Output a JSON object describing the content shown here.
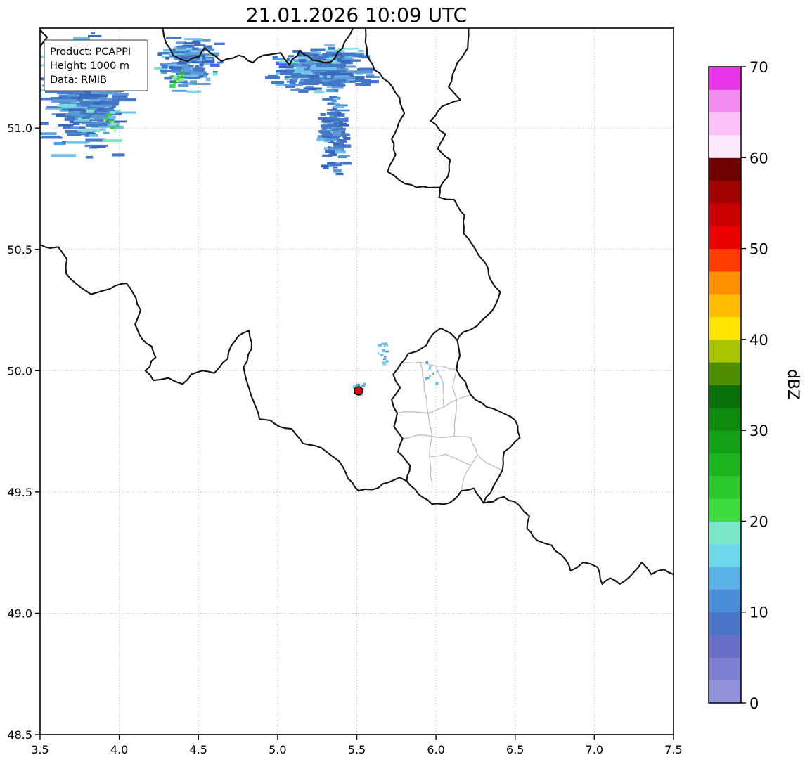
{
  "info_box": {
    "product": "Product: PCAPPI",
    "height": "Height: 1000 m",
    "data_source": "Data: RMIB"
  },
  "chart_data": {
    "type": "heatmap",
    "title": "21.01.2026 10:09 UTC",
    "xlabel": "",
    "ylabel": "",
    "units": "dBZ",
    "grid": true,
    "xlim": [
      3.5,
      7.5
    ],
    "ylim": [
      48.5,
      51.412
    ],
    "x_ticks": [
      3.5,
      4.0,
      4.5,
      5.0,
      5.5,
      6.0,
      6.5,
      7.0,
      7.5
    ],
    "y_ticks": [
      48.5,
      49.0,
      49.5,
      50.0,
      50.5,
      51.0
    ],
    "colorbar": {
      "label": "dBZ",
      "min": 0,
      "max": 70,
      "step": 2.5,
      "ticks": [
        0,
        10,
        20,
        30,
        40,
        50,
        60,
        70
      ],
      "colors": [
        "#9191dc",
        "#7f7fd2",
        "#6a6ec8",
        "#4a74c8",
        "#4a8ed8",
        "#5ab2e6",
        "#6ed8ea",
        "#7ce6c8",
        "#3fdc3f",
        "#2cc82c",
        "#1eb41e",
        "#14a014",
        "#0e8a0e",
        "#0a700a",
        "#4e8c00",
        "#a8c400",
        "#ffe400",
        "#ffbc00",
        "#ff9000",
        "#ff3c00",
        "#ea0000",
        "#c80000",
        "#a00000",
        "#700000",
        "#fce9fc",
        "#f9c2f9",
        "#f48cf4",
        "#e835e8"
      ]
    },
    "radar_marker": {
      "lon": 5.51,
      "lat": 49.917,
      "color": "#e01010"
    },
    "echo_clusters": [
      {
        "seed": 11,
        "count": 300,
        "center": [
          3.8,
          51.14
        ],
        "rx": 0.34,
        "ry": 0.3,
        "streak": [
          5,
          38
        ],
        "palette": [
          [
            "#4577c6",
            40
          ],
          [
            "#5c9ad6",
            22
          ],
          [
            "#3a66bd",
            14
          ],
          [
            "#6fc0e8",
            14
          ],
          [
            "#7adce0",
            7
          ],
          [
            "#7fe3c4",
            3
          ]
        ]
      },
      {
        "seed": 23,
        "count": 10,
        "center": [
          3.95,
          51.02
        ],
        "rx": 0.1,
        "ry": 0.06,
        "streak": [
          3,
          9
        ],
        "palette": [
          [
            "#37d04a",
            40
          ],
          [
            "#8ee89a",
            30
          ],
          [
            "#7adce0",
            30
          ]
        ]
      },
      {
        "seed": 31,
        "count": 150,
        "center": [
          4.44,
          51.27
        ],
        "rx": 0.24,
        "ry": 0.15,
        "streak": [
          5,
          26
        ],
        "palette": [
          [
            "#4577c6",
            40
          ],
          [
            "#5c9ad6",
            25
          ],
          [
            "#3a66bd",
            15
          ],
          [
            "#6fc0e8",
            15
          ],
          [
            "#7adce0",
            5
          ]
        ]
      },
      {
        "seed": 7,
        "count": 20,
        "center": [
          4.365,
          51.205
        ],
        "rx": 0.05,
        "ry": 0.04,
        "streak": [
          3,
          9
        ],
        "palette": [
          [
            "#37d04a",
            45
          ],
          [
            "#26b838",
            25
          ],
          [
            "#8ee89a",
            20
          ],
          [
            "#7adce0",
            10
          ]
        ]
      },
      {
        "seed": 43,
        "count": 280,
        "center": [
          5.28,
          51.24
        ],
        "rx": 0.4,
        "ry": 0.12,
        "streak": [
          5,
          30
        ],
        "palette": [
          [
            "#4577c6",
            42
          ],
          [
            "#5c9ad6",
            22
          ],
          [
            "#3a66bd",
            16
          ],
          [
            "#6fc0e8",
            14
          ],
          [
            "#7adce0",
            6
          ]
        ]
      },
      {
        "seed": 57,
        "count": 150,
        "center": [
          5.36,
          50.99
        ],
        "rx": 0.11,
        "ry": 0.22,
        "streak": [
          4,
          18
        ],
        "palette": [
          [
            "#3a66bd",
            35
          ],
          [
            "#4577c6",
            35
          ],
          [
            "#5c9ad6",
            20
          ],
          [
            "#6fc0e8",
            10
          ]
        ]
      },
      {
        "seed": 61,
        "count": 14,
        "center": [
          5.67,
          50.08
        ],
        "rx": 0.05,
        "ry": 0.12,
        "streak": [
          2,
          6
        ],
        "palette": [
          [
            "#6fc0e8",
            50
          ],
          [
            "#5c9ad6",
            30
          ],
          [
            "#7adce0",
            20
          ]
        ]
      },
      {
        "seed": 71,
        "count": 12,
        "center": [
          5.52,
          49.93
        ],
        "rx": 0.07,
        "ry": 0.05,
        "streak": [
          2,
          6
        ],
        "palette": [
          [
            "#6fc0e8",
            60
          ],
          [
            "#5c9ad6",
            40
          ]
        ]
      },
      {
        "seed": 83,
        "count": 10,
        "center": [
          5.96,
          49.97
        ],
        "rx": 0.09,
        "ry": 0.08,
        "streak": [
          2,
          5
        ],
        "palette": [
          [
            "#6fc0e8",
            60
          ],
          [
            "#5c9ad6",
            40
          ]
        ]
      }
    ],
    "borders": {
      "country": [
        [
          [
            3.5,
            51.405
          ],
          [
            3.545,
            51.375
          ],
          [
            3.515,
            51.35
          ],
          [
            3.5,
            51.335
          ]
        ],
        [
          [
            4.275,
            51.412
          ],
          [
            4.295,
            51.35
          ],
          [
            4.34,
            51.3
          ],
          [
            4.43,
            51.275
          ],
          [
            4.505,
            51.295
          ],
          [
            4.54,
            51.33
          ],
          [
            4.645,
            51.275
          ],
          [
            4.755,
            51.3
          ],
          [
            4.845,
            51.27
          ],
          [
            4.91,
            51.3
          ],
          [
            5.02,
            51.31
          ],
          [
            5.075,
            51.26
          ],
          [
            5.14,
            51.32
          ],
          [
            5.22,
            51.28
          ],
          [
            5.33,
            51.27
          ],
          [
            5.41,
            51.33
          ],
          [
            5.475,
            51.412
          ]
        ],
        [
          [
            5.555,
            51.412
          ],
          [
            5.565,
            51.3
          ],
          [
            5.61,
            51.24
          ],
          [
            5.7,
            51.19
          ],
          [
            5.77,
            51.125
          ],
          [
            5.8,
            51.06
          ],
          [
            5.755,
            51.0
          ],
          [
            5.72,
            50.955
          ],
          [
            5.745,
            50.89
          ],
          [
            5.695,
            50.82
          ],
          [
            5.77,
            50.785
          ],
          [
            5.88,
            50.755
          ],
          [
            5.99,
            50.755
          ],
          [
            6.025,
            50.755
          ]
        ],
        [
          [
            6.205,
            51.412
          ],
          [
            6.2,
            51.33
          ],
          [
            6.135,
            51.27
          ],
          [
            6.08,
            51.17
          ],
          [
            6.155,
            51.115
          ],
          [
            6.04,
            51.09
          ],
          [
            5.965,
            51.03
          ],
          [
            6.06,
            50.975
          ],
          [
            6.01,
            50.915
          ],
          [
            6.09,
            50.87
          ],
          [
            6.075,
            50.8
          ],
          [
            6.025,
            50.755
          ]
        ],
        [
          [
            6.025,
            50.755
          ],
          [
            6.02,
            50.715
          ],
          [
            6.115,
            50.705
          ],
          [
            6.18,
            50.64
          ],
          [
            6.175,
            50.565
          ],
          [
            6.25,
            50.5
          ],
          [
            6.315,
            50.44
          ],
          [
            6.345,
            50.375
          ],
          [
            6.405,
            50.325
          ],
          [
            6.375,
            50.27
          ],
          [
            6.32,
            50.225
          ],
          [
            6.26,
            50.185
          ],
          [
            6.175,
            50.16
          ],
          [
            6.135,
            50.125
          ]
        ],
        [
          [
            6.135,
            50.125
          ],
          [
            6.15,
            50.06
          ],
          [
            6.13,
            50.005
          ],
          [
            6.185,
            49.955
          ],
          [
            6.22,
            49.9
          ],
          [
            6.32,
            49.85
          ],
          [
            6.44,
            49.82
          ],
          [
            6.5,
            49.795
          ],
          [
            6.53,
            49.725
          ],
          [
            6.43,
            49.665
          ],
          [
            6.42,
            49.59
          ],
          [
            6.36,
            49.52
          ],
          [
            6.3,
            49.455
          ],
          [
            6.24,
            49.515
          ],
          [
            6.16,
            49.505
          ],
          [
            6.085,
            49.455
          ],
          [
            5.975,
            49.45
          ],
          [
            5.89,
            49.49
          ],
          [
            5.815,
            49.545
          ],
          [
            5.835,
            49.61
          ],
          [
            5.76,
            49.665
          ],
          [
            5.79,
            49.72
          ],
          [
            5.735,
            49.77
          ],
          [
            5.755,
            49.825
          ],
          [
            5.72,
            49.88
          ],
          [
            5.775,
            49.93
          ],
          [
            5.73,
            49.985
          ],
          [
            5.78,
            50.03
          ],
          [
            5.825,
            50.07
          ],
          [
            5.88,
            50.08
          ],
          [
            5.94,
            50.105
          ],
          [
            5.98,
            50.15
          ],
          [
            6.03,
            50.175
          ],
          [
            6.09,
            50.155
          ],
          [
            6.135,
            50.125
          ]
        ],
        [
          [
            3.5,
            50.52
          ],
          [
            3.56,
            50.505
          ],
          [
            3.615,
            50.51
          ],
          [
            3.67,
            50.46
          ],
          [
            3.665,
            50.4
          ],
          [
            3.735,
            50.355
          ],
          [
            3.82,
            50.315
          ],
          [
            3.9,
            50.33
          ],
          [
            3.975,
            50.35
          ],
          [
            4.045,
            50.36
          ],
          [
            4.105,
            50.3
          ],
          [
            4.135,
            50.25
          ],
          [
            4.1,
            50.19
          ],
          [
            4.145,
            50.13
          ],
          [
            4.205,
            50.1
          ],
          [
            4.23,
            50.055
          ],
          [
            4.165,
            50.0
          ],
          [
            4.215,
            49.96
          ],
          [
            4.31,
            49.97
          ],
          [
            4.4,
            49.945
          ],
          [
            4.455,
            49.985
          ],
          [
            4.525,
            50.0
          ],
          [
            4.6,
            49.99
          ],
          [
            4.685,
            50.05
          ],
          [
            4.705,
            50.1
          ],
          [
            4.755,
            50.145
          ],
          [
            4.82,
            50.165
          ],
          [
            4.835,
            50.09
          ],
          [
            4.785,
            50.015
          ],
          [
            4.805,
            49.955
          ],
          [
            4.85,
            49.87
          ],
          [
            4.885,
            49.8
          ],
          [
            4.955,
            49.795
          ],
          [
            5.01,
            49.77
          ],
          [
            5.09,
            49.76
          ],
          [
            5.16,
            49.7
          ],
          [
            5.24,
            49.69
          ],
          [
            5.31,
            49.665
          ],
          [
            5.39,
            49.625
          ],
          [
            5.445,
            49.555
          ],
          [
            5.51,
            49.505
          ],
          [
            5.6,
            49.51
          ],
          [
            5.7,
            49.54
          ],
          [
            5.77,
            49.56
          ],
          [
            5.815,
            49.545
          ]
        ],
        [
          [
            6.3,
            49.455
          ],
          [
            6.36,
            49.46
          ],
          [
            6.43,
            49.48
          ],
          [
            6.525,
            49.445
          ],
          [
            6.59,
            49.4
          ],
          [
            6.575,
            49.35
          ],
          [
            6.64,
            49.3
          ],
          [
            6.73,
            49.28
          ],
          [
            6.82,
            49.22
          ],
          [
            6.85,
            49.175
          ],
          [
            6.93,
            49.21
          ],
          [
            7.02,
            49.19
          ],
          [
            7.05,
            49.12
          ],
          [
            7.1,
            49.145
          ],
          [
            7.16,
            49.12
          ],
          [
            7.25,
            49.17
          ],
          [
            7.3,
            49.21
          ],
          [
            7.36,
            49.16
          ],
          [
            7.44,
            49.18
          ],
          [
            7.5,
            49.16
          ]
        ]
      ],
      "region": [
        [
          [
            5.78,
            50.03
          ],
          [
            5.9,
            50.035
          ],
          [
            6.0,
            50.02
          ],
          [
            6.13,
            50.005
          ]
        ],
        [
          [
            5.755,
            49.825
          ],
          [
            5.86,
            49.83
          ],
          [
            5.95,
            49.825
          ],
          [
            6.05,
            49.85
          ],
          [
            6.13,
            49.88
          ],
          [
            6.22,
            49.9
          ]
        ],
        [
          [
            5.79,
            49.72
          ],
          [
            5.9,
            49.735
          ],
          [
            6.02,
            49.725
          ],
          [
            6.115,
            49.73
          ],
          [
            6.22,
            49.725
          ]
        ],
        [
          [
            5.95,
            49.825
          ],
          [
            5.975,
            49.73
          ],
          [
            5.96,
            49.645
          ],
          [
            5.975,
            49.52
          ]
        ],
        [
          [
            6.13,
            50.005
          ],
          [
            6.105,
            49.93
          ],
          [
            6.13,
            49.88
          ]
        ],
        [
          [
            6.13,
            49.88
          ],
          [
            6.12,
            49.8
          ],
          [
            6.115,
            49.73
          ]
        ],
        [
          [
            6.22,
            49.725
          ],
          [
            6.26,
            49.655
          ],
          [
            6.32,
            49.62
          ],
          [
            6.42,
            49.59
          ]
        ],
        [
          [
            5.96,
            49.645
          ],
          [
            6.06,
            49.655
          ],
          [
            6.15,
            49.63
          ],
          [
            6.22,
            49.61
          ],
          [
            6.26,
            49.655
          ]
        ],
        [
          [
            6.16,
            49.505
          ],
          [
            6.175,
            49.555
          ],
          [
            6.22,
            49.61
          ]
        ],
        [
          [
            5.9,
            50.035
          ],
          [
            5.925,
            49.95
          ],
          [
            5.95,
            49.825
          ]
        ],
        [
          [
            6.0,
            50.02
          ],
          [
            6.045,
            49.95
          ],
          [
            6.05,
            49.85
          ]
        ]
      ]
    }
  }
}
